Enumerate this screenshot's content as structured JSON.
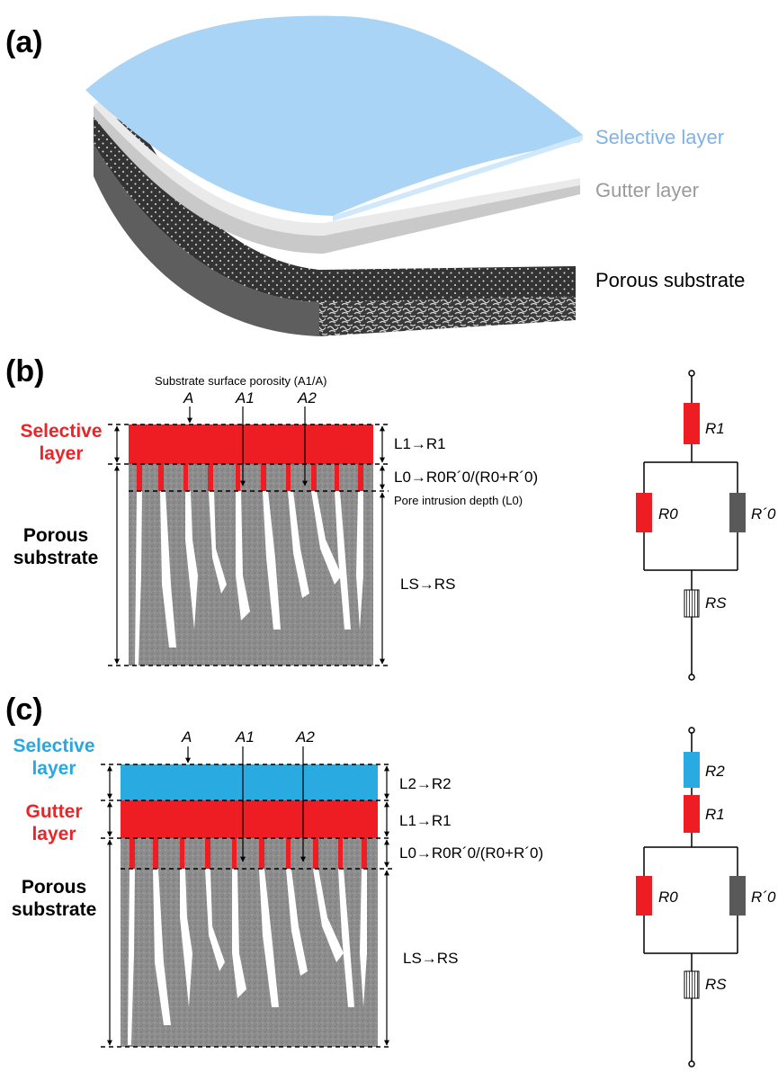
{
  "panel_a": {
    "label": "(a)",
    "layers": [
      {
        "name": "Selective layer",
        "color": "#7fb2e6"
      },
      {
        "name": "Gutter layer",
        "color": "#9a9a9a"
      },
      {
        "name": "Porous substrate",
        "color": "#000000"
      }
    ]
  },
  "panel_b": {
    "label": "(b)",
    "title_selective": [
      "Selective",
      "layer"
    ],
    "title_substrate": [
      "Porous",
      "substrate"
    ],
    "title_selective_color": "#e8262a",
    "porosity_note": "Substrate surface porosity (A1/A)",
    "markers": [
      "A",
      "A1",
      "A2"
    ],
    "intrusion_note": "Pore intrusion depth (L0)",
    "lengths": [
      "L1→R1",
      "L0→R0R´0/(R0+R´0)",
      "LS→RS"
    ],
    "circuit": [
      "R1",
      "R0",
      "R´0",
      "RS"
    ]
  },
  "panel_c": {
    "label": "(c)",
    "title_selective": [
      "Selective",
      "layer"
    ],
    "title_selective_color": "#29a8e0",
    "title_gutter": [
      "Gutter",
      "layer"
    ],
    "title_gutter_color": "#e8262a",
    "title_substrate": [
      "Porous",
      "substrate"
    ],
    "markers": [
      "A",
      "A1",
      "A2"
    ],
    "lengths": [
      "L2→R2",
      "L1→R1",
      "L0→R0R´0/(R0+R´0)",
      "LS→RS"
    ],
    "circuit": [
      "R2",
      "R1",
      "R0",
      "R´0",
      "RS"
    ]
  },
  "colors": {
    "red": "#ee1d23",
    "blue": "#29aae1",
    "resistor_gray": "#595959"
  }
}
